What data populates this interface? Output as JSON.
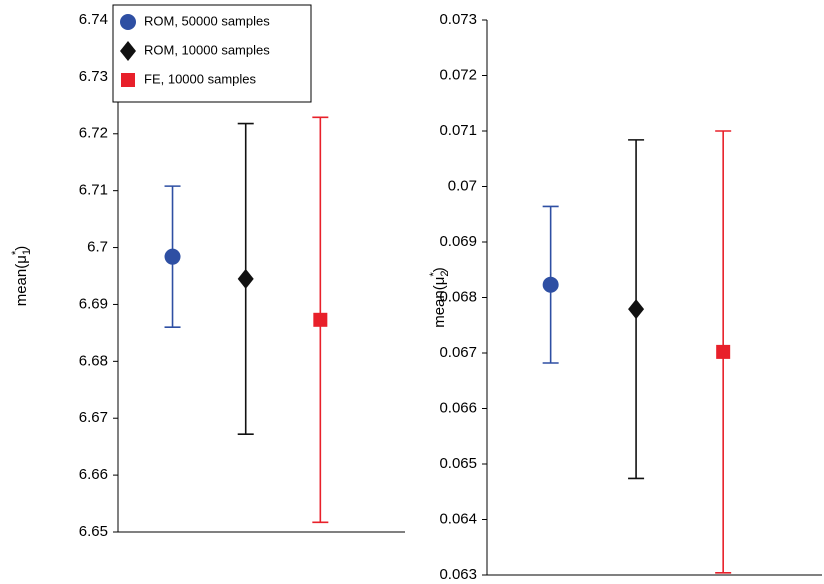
{
  "chart_data": [
    {
      "type": "errorbar",
      "ylabel": [
        "mean(μ",
        "1",
        "*",
        ")"
      ],
      "ylim": [
        6.65,
        6.74
      ],
      "yticks": [
        6.65,
        6.66,
        6.67,
        6.68,
        6.69,
        6.7,
        6.71,
        6.72,
        6.73,
        6.74
      ],
      "legend": "upper left",
      "series": [
        {
          "name": "ROM, 50000 samples",
          "color": "#2e4fa3",
          "marker": "circle",
          "values": [
            6.6984
          ],
          "errors": [
            0.0124
          ]
        },
        {
          "name": "ROM, 10000 samples",
          "color": "#111111",
          "marker": "diamond",
          "values": [
            6.6945
          ],
          "errors": [
            0.0273
          ]
        },
        {
          "name": "FE, 10000 samples",
          "color": "#e8202a",
          "marker": "square",
          "values": [
            6.6873
          ],
          "errors": [
            0.0356
          ]
        }
      ]
    },
    {
      "type": "errorbar",
      "ylabel": [
        "mean(μ",
        "2",
        "*",
        ")"
      ],
      "ylim": [
        0.063,
        0.073
      ],
      "yticks": [
        0.063,
        0.064,
        0.065,
        0.066,
        0.067,
        0.068,
        0.069,
        0.07,
        0.071,
        0.072,
        0.073
      ],
      "series": [
        {
          "color": "#2e4fa3",
          "marker": "circle",
          "values": [
            0.06823
          ],
          "errors": [
            0.00141
          ]
        },
        {
          "color": "#111111",
          "marker": "diamond",
          "values": [
            0.06779
          ],
          "errors": [
            0.00305
          ]
        },
        {
          "color": "#e8202a",
          "marker": "square",
          "values": [
            0.06702
          ],
          "errors": [
            0.00398
          ]
        }
      ]
    }
  ]
}
